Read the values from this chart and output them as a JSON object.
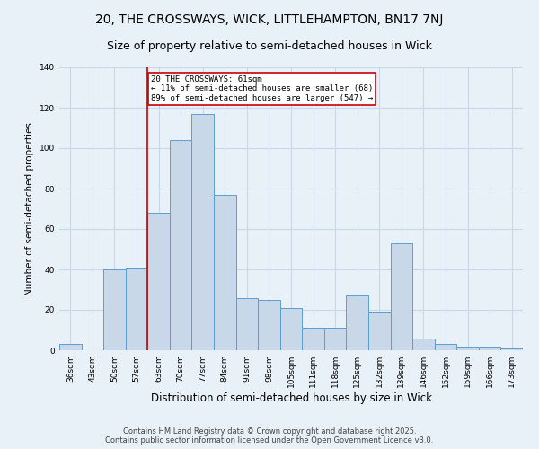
{
  "title": "20, THE CROSSWAYS, WICK, LITTLEHAMPTON, BN17 7NJ",
  "subtitle": "Size of property relative to semi-detached houses in Wick",
  "xlabel": "Distribution of semi-detached houses by size in Wick",
  "ylabel": "Number of semi-detached properties",
  "categories": [
    "36sqm",
    "43sqm",
    "50sqm",
    "57sqm",
    "63sqm",
    "70sqm",
    "77sqm",
    "84sqm",
    "91sqm",
    "98sqm",
    "105sqm",
    "111sqm",
    "118sqm",
    "125sqm",
    "132sqm",
    "139sqm",
    "146sqm",
    "152sqm",
    "159sqm",
    "166sqm",
    "173sqm"
  ],
  "values": [
    3,
    0,
    40,
    41,
    68,
    104,
    117,
    77,
    26,
    25,
    21,
    11,
    11,
    27,
    19,
    53,
    6,
    3,
    2,
    2,
    1
  ],
  "bar_color": "#c8d8e8",
  "bar_edge_color": "#5a9fd4",
  "grid_color": "#c8d8e8",
  "property_line_x": 3.5,
  "annotation_text": "20 THE CROSSWAYS: 61sqm\n← 11% of semi-detached houses are smaller (68)\n89% of semi-detached houses are larger (547) →",
  "annotation_box_color": "#ffffff",
  "annotation_box_edge": "#cc0000",
  "property_line_color": "#cc0000",
  "ylim": [
    0,
    140
  ],
  "yticks": [
    0,
    20,
    40,
    60,
    80,
    100,
    120,
    140
  ],
  "background_color": "#e8f0f8",
  "plot_background": "#e8f0f8",
  "footer_line1": "Contains HM Land Registry data © Crown copyright and database right 2025.",
  "footer_line2": "Contains public sector information licensed under the Open Government Licence v3.0.",
  "title_fontsize": 10,
  "subtitle_fontsize": 9,
  "xlabel_fontsize": 8.5,
  "ylabel_fontsize": 7.5,
  "tick_fontsize": 6.5,
  "annotation_fontsize": 6.5,
  "footer_fontsize": 6.0
}
